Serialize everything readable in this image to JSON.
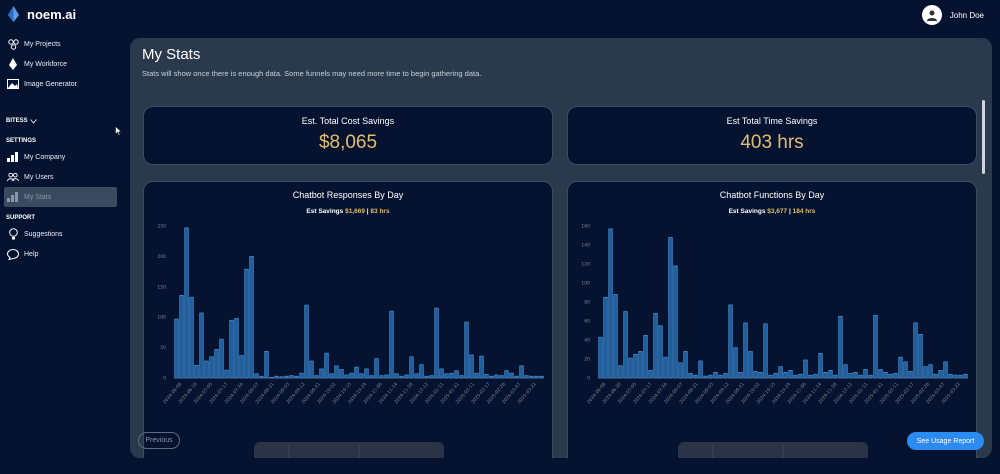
{
  "app": {
    "logo_text": "noem.ai"
  },
  "user": {
    "name": "John Doe"
  },
  "sidebar": {
    "items": [
      {
        "label": "My Projects",
        "icon": "projects-icon"
      },
      {
        "label": "My Workforce",
        "icon": "workforce-icon"
      },
      {
        "label": "Image Generator",
        "icon": "image-icon"
      }
    ],
    "org": "BITESS",
    "settings_header": "SETTINGS",
    "settings_items": [
      {
        "label": "My Company",
        "icon": "company-icon"
      },
      {
        "label": "My Users",
        "icon": "users-icon"
      },
      {
        "label": "My Stats",
        "icon": "stats-icon",
        "active": true
      }
    ],
    "support_header": "SUPPORT",
    "support_items": [
      {
        "label": "Suggestions",
        "icon": "lightbulb-icon"
      },
      {
        "label": "Help",
        "icon": "help-icon"
      }
    ]
  },
  "main": {
    "title": "My Stats",
    "subtitle": "Stats will show once there is enough data. Some funnels may need more time to begin gathering data.",
    "cost_card": {
      "title": "Est. Total Cost Savings",
      "value": "$8,065"
    },
    "time_card": {
      "title": "Est Total Time Savings",
      "value": "403 hrs"
    },
    "previous_label": "Previous",
    "usage_label": "See Usage Report"
  },
  "colors": {
    "accent": "#2c8bf0",
    "gold": "#e2be6a",
    "bar": "#1f5f9e",
    "bar_edge": "#4d9be0"
  },
  "chart_data": [
    {
      "type": "bar",
      "title": "Chatbot Responses By Day",
      "savings_label": "Est Savings",
      "savings_money": "$1,669",
      "savings_sep": "|",
      "savings_time": "83 hrs",
      "ylim": [
        0,
        250
      ],
      "yticks": [
        0,
        50,
        100,
        150,
        200,
        250
      ],
      "x_labels": [
        "2024-06-08",
        "2024-06-19",
        "2024-07-05",
        "2024-07-17",
        "2024-07-26",
        "2024-08-07",
        "2024-08-21",
        "2024-09-03",
        "2024-09-12",
        "2024-09-21",
        "2024-10-01",
        "2024-10-15",
        "2024-10-24",
        "2024-11-06",
        "2024-11-14",
        "2024-11-28",
        "2024-12-12",
        "2025-01-11",
        "2025-01-21",
        "2025-02-11",
        "2025-02-17",
        "2025-02-26",
        "2025-03-07",
        "2025-03-22"
      ],
      "values": [
        97,
        136,
        247,
        133,
        21,
        107,
        28,
        35,
        47,
        64,
        13,
        95,
        98,
        37,
        179,
        200,
        7,
        3,
        44,
        1,
        3,
        2,
        3,
        4,
        3,
        8,
        120,
        28,
        4,
        15,
        41,
        7,
        20,
        14,
        5,
        8,
        18,
        7,
        15,
        4,
        32,
        4,
        5,
        110,
        7,
        3,
        5,
        35,
        7,
        22,
        3,
        4,
        115,
        15,
        7,
        8,
        12,
        4,
        92,
        38,
        8,
        36,
        6,
        3,
        5,
        4,
        12,
        8,
        3,
        20,
        4,
        3,
        3,
        3
      ]
    },
    {
      "type": "bar",
      "title": "Chatbot Functions By Day",
      "savings_label": "Est Savings",
      "savings_money": "$3,677",
      "savings_sep": "|",
      "savings_time": "184 hrs",
      "ylim": [
        0,
        160
      ],
      "yticks": [
        0,
        20,
        40,
        60,
        80,
        100,
        120,
        140,
        160
      ],
      "x_labels": [
        "2024-06-08",
        "2024-06-20",
        "2024-07-05",
        "2024-07-17",
        "2024-07-26",
        "2024-08-07",
        "2024-08-21",
        "2024-09-03",
        "2024-09-12",
        "2024-09-21",
        "2024-10-01",
        "2024-10-15",
        "2024-10-24",
        "2024-11-06",
        "2024-11-14",
        "2024-11-28",
        "2024-12-12",
        "2025-01-11",
        "2025-01-21",
        "2025-02-11",
        "2025-02-17",
        "2025-02-26",
        "2025-03-07",
        "2025-03-22"
      ],
      "values": [
        43,
        85,
        157,
        88,
        13,
        70,
        21,
        25,
        28,
        45,
        8,
        68,
        55,
        22,
        148,
        118,
        16,
        28,
        5,
        3,
        18,
        2,
        3,
        6,
        3,
        5,
        77,
        32,
        6,
        58,
        28,
        7,
        6,
        57,
        3,
        5,
        12,
        6,
        8,
        3,
        4,
        19,
        3,
        4,
        26,
        6,
        8,
        3,
        65,
        14,
        5,
        6,
        3,
        9,
        3,
        66,
        9,
        6,
        4,
        5,
        22,
        17,
        7,
        58,
        46,
        12,
        14,
        4,
        8,
        17,
        4,
        3,
        3,
        4
      ]
    }
  ]
}
